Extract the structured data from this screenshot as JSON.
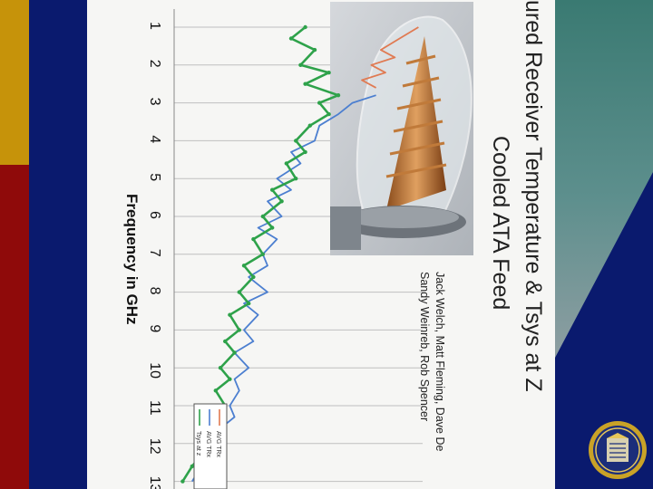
{
  "slide": {
    "title_line1": "ured Receiver Temperature & Tsys at Z",
    "title_line2": "Cooled ATA Feed",
    "authors_line1": "Jack Welch, Matt Fleming, Dave De",
    "authors_line2": "Sandy Weinreb, Rob Spencer"
  },
  "colors": {
    "series_trx_red": "#e07a52",
    "series_trx_blue": "#4c7fd0",
    "series_tsys_green": "#2ea24a",
    "navy": "#0a1a6e",
    "gold": "#c6930a",
    "maroon": "#8f0a0a",
    "teal": "#3a7a72"
  },
  "chart_data": {
    "type": "line",
    "orientation": "rotated 90 degrees clockwise (frequency axis runs top to bottom)",
    "xlabel": "Frequency in GHz",
    "x_tick_labels": [
      "1",
      "2",
      "3",
      "4",
      "5",
      "6",
      "7",
      "8",
      "9",
      "10",
      "11",
      "12",
      "13"
    ],
    "xlim": [
      1,
      13
    ],
    "legend": [
      "AVG TRx",
      "AVG TRx",
      "Tsys at z"
    ],
    "legend_placement": "bottom-right",
    "grid": true,
    "series": [
      {
        "color": "#e07a52",
        "x": [
          1.0,
          1.3,
          1.6,
          1.8,
          2.0,
          2.2,
          2.4,
          2.6
        ],
        "y": [
          52,
          48,
          44,
          47,
          42,
          45,
          40,
          43
        ]
      },
      {
        "color": "#4c7fd0",
        "x": [
          2.8,
          3.0,
          3.3,
          3.6,
          4.0,
          4.3,
          4.6,
          5.0,
          5.3,
          5.6,
          6.0,
          6.3,
          6.6,
          7.0,
          7.3,
          7.6,
          8.0,
          8.3,
          8.6,
          9.0,
          9.3,
          9.6,
          10.0,
          10.3,
          10.6,
          11.0,
          11.3,
          11.6,
          12.0,
          12.3,
          12.6,
          13.0
        ],
        "y": [
          43,
          38,
          35,
          31,
          30,
          25,
          27,
          22,
          25,
          20,
          23,
          18,
          22,
          19,
          20,
          16,
          20,
          15,
          18,
          15,
          17,
          13,
          16,
          13,
          14,
          12,
          13,
          10,
          11,
          8,
          6,
          4
        ]
      },
      {
        "color": "#2ea24a",
        "x": [
          1.0,
          1.3,
          1.6,
          2.0,
          2.2,
          2.5,
          2.8,
          3.0,
          3.3,
          3.6,
          4.0,
          4.3,
          4.6,
          5.0,
          5.3,
          5.6,
          6.0,
          6.3,
          6.6,
          7.0,
          7.3,
          7.6,
          8.0,
          8.3,
          8.6,
          9.0,
          9.3,
          9.6,
          10.0,
          10.3,
          10.6,
          11.0,
          11.3,
          11.6,
          12.0,
          12.3,
          12.6,
          13.0
        ],
        "y": [
          28,
          25,
          30,
          27,
          33,
          28,
          35,
          31,
          33,
          29,
          26,
          28,
          24,
          26,
          21,
          23,
          19,
          21,
          17,
          19,
          15,
          17,
          14,
          16,
          12,
          14,
          11,
          13,
          10,
          12,
          9,
          11,
          8,
          9,
          7,
          6,
          4,
          2
        ]
      }
    ]
  }
}
